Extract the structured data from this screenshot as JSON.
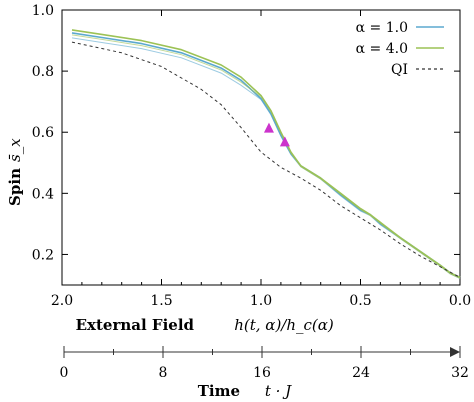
{
  "chart_data": {
    "type": "line",
    "xlabel_bold": "External Field",
    "xlabel_math": "h(t, α)/h_c(α)",
    "ylabel_bold": "Spin",
    "ylabel_math": "s̄_x",
    "xlim": [
      2.0,
      0.0
    ],
    "ylim": [
      0.1,
      1.0
    ],
    "x_ticks": [
      "2.0",
      "1.5",
      "1.0",
      "0.5",
      "0.0"
    ],
    "y_ticks": [
      "0.2",
      "0.4",
      "0.6",
      "0.8",
      "1.0"
    ],
    "legend_position": "top-right",
    "series": [
      {
        "name": "α = 1.0",
        "color": "#5ba9cf",
        "style": "solid",
        "x": [
          1.95,
          1.8,
          1.6,
          1.4,
          1.2,
          1.1,
          1.0,
          0.95,
          0.9,
          0.85,
          0.8,
          0.7,
          0.6,
          0.5,
          0.45,
          0.4,
          0.3,
          0.2,
          0.1,
          0.05,
          0.0
        ],
        "y": [
          0.925,
          0.91,
          0.89,
          0.86,
          0.81,
          0.77,
          0.71,
          0.66,
          0.59,
          0.53,
          0.49,
          0.45,
          0.395,
          0.345,
          0.33,
          0.3,
          0.255,
          0.21,
          0.165,
          0.14,
          0.125
        ]
      },
      {
        "name": "α = 4.0",
        "color": "#9cc255",
        "style": "solid",
        "x": [
          1.95,
          1.8,
          1.6,
          1.4,
          1.2,
          1.1,
          1.0,
          0.95,
          0.9,
          0.85,
          0.8,
          0.7,
          0.6,
          0.5,
          0.45,
          0.4,
          0.3,
          0.2,
          0.1,
          0.05,
          0.0
        ],
        "y": [
          0.935,
          0.92,
          0.9,
          0.87,
          0.82,
          0.78,
          0.72,
          0.67,
          0.6,
          0.535,
          0.49,
          0.45,
          0.4,
          0.35,
          0.33,
          0.305,
          0.255,
          0.21,
          0.165,
          0.14,
          0.125
        ]
      },
      {
        "name": "QI",
        "color": "#333333",
        "style": "dashed",
        "x": [
          1.95,
          1.7,
          1.5,
          1.3,
          1.2,
          1.1,
          1.0,
          0.9,
          0.8,
          0.7,
          0.6,
          0.5,
          0.4,
          0.3,
          0.2,
          0.1,
          0.0
        ],
        "y": [
          0.895,
          0.86,
          0.815,
          0.74,
          0.69,
          0.615,
          0.535,
          0.485,
          0.45,
          0.41,
          0.36,
          0.32,
          0.28,
          0.235,
          0.195,
          0.16,
          0.125
        ]
      }
    ],
    "markers": [
      {
        "x": 0.96,
        "y": 0.615,
        "color": "#cc33cc",
        "shape": "triangle"
      },
      {
        "x": 0.88,
        "y": 0.57,
        "color": "#cc33cc",
        "shape": "triangle"
      }
    ],
    "secondary_axis": {
      "label_bold": "Time",
      "label_math": "t · J",
      "ticks": [
        "0",
        "8",
        "16",
        "24",
        "32"
      ],
      "range": [
        0,
        32
      ]
    }
  }
}
